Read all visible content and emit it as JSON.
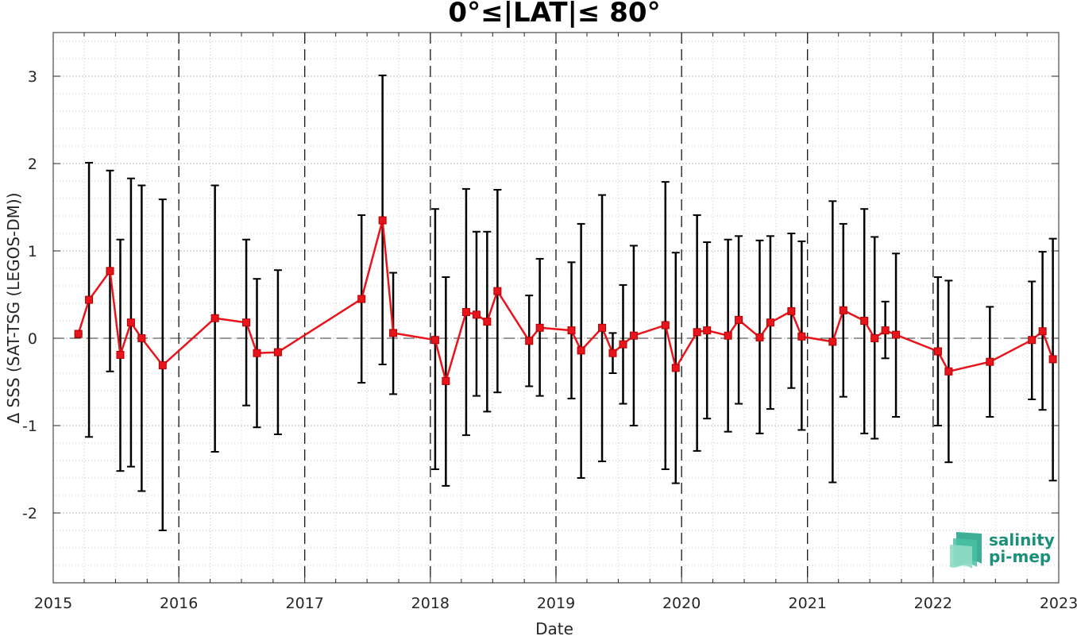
{
  "chart_data": {
    "type": "line",
    "title": "0°≤|LAT|≤ 80°",
    "xlabel": "Date",
    "ylabel": "Δ SSS (SAT-TSG (LEGOS-DM))",
    "xlim": [
      "2015-01-01",
      "2023-01-01"
    ],
    "ylim": [
      -2.8,
      3.5
    ],
    "y_ticks": [
      -2,
      -1,
      0,
      1,
      2,
      3
    ],
    "x_ticks": [
      "2015-01-01",
      "2016-01-01",
      "2017-01-01",
      "2018-01-01",
      "2019-01-01",
      "2020-01-01",
      "2021-01-01",
      "2022-01-01",
      "2023-01-01"
    ],
    "x_tick_labels": [
      "2015",
      "2016",
      "2017",
      "2018",
      "2019",
      "2020",
      "2021",
      "2022",
      "2023"
    ],
    "grid": true,
    "year_separators": "dashed vertical lines at each year",
    "zero_line": "dashed horizontal line at 0",
    "line_color": "#e8141b",
    "marker": "square",
    "error_bar_color": "#000000",
    "series": [
      {
        "x": [
          "2015-03-15",
          "2015-04-15",
          "2015-06-15",
          "2015-07-15",
          "2015-08-15",
          "2015-09-15",
          "2015-11-15",
          "2016-04-15",
          "2016-07-15",
          "2016-08-15",
          "2016-10-15",
          "2017-06-15",
          "2017-08-15",
          "2017-09-15",
          "2018-01-15",
          "2018-02-15",
          "2018-04-15",
          "2018-05-15",
          "2018-06-15",
          "2018-07-15",
          "2018-10-15",
          "2018-11-15",
          "2019-02-15",
          "2019-03-15",
          "2019-05-15",
          "2019-06-15",
          "2019-07-15",
          "2019-08-15",
          "2019-11-15",
          "2019-12-15",
          "2020-02-15",
          "2020-03-15",
          "2020-05-15",
          "2020-06-15",
          "2020-08-15",
          "2020-09-15",
          "2020-11-15",
          "2020-12-15",
          "2021-03-15",
          "2021-04-15",
          "2021-06-15",
          "2021-07-15",
          "2021-08-15",
          "2021-09-15",
          "2022-01-15",
          "2022-02-15",
          "2022-06-15",
          "2022-10-15",
          "2022-11-15",
          "2022-12-15"
        ],
        "y": [
          0.05,
          0.44,
          0.77,
          -0.19,
          0.18,
          0.0,
          -0.31,
          0.23,
          0.18,
          -0.17,
          -0.16,
          0.45,
          1.35,
          0.06,
          -0.02,
          -0.49,
          0.3,
          0.27,
          0.19,
          0.54,
          -0.03,
          0.12,
          0.09,
          -0.14,
          0.12,
          -0.17,
          -0.07,
          0.03,
          0.15,
          -0.34,
          0.07,
          0.09,
          0.03,
          0.21,
          0.01,
          0.18,
          0.31,
          0.02,
          -0.04,
          0.32,
          0.2,
          0.0,
          0.09,
          0.04,
          -0.15,
          -0.38,
          -0.27,
          -0.02,
          0.08,
          -0.24
        ],
        "y_low": [
          0.05,
          -1.13,
          -0.38,
          -1.52,
          -1.47,
          -1.75,
          -2.2,
          -1.3,
          -0.77,
          -1.02,
          -1.1,
          -0.51,
          -0.3,
          -0.64,
          -1.5,
          -1.69,
          -1.11,
          -0.66,
          -0.84,
          -0.62,
          -0.55,
          -0.66,
          -0.69,
          -1.6,
          -1.41,
          -0.4,
          -0.75,
          -1.0,
          -1.5,
          -1.66,
          -1.29,
          -0.92,
          -1.07,
          -0.75,
          -1.09,
          -0.81,
          -0.57,
          -1.05,
          -1.65,
          -0.67,
          -1.09,
          -1.15,
          -0.23,
          -0.9,
          -1.0,
          -1.42,
          -0.9,
          -0.7,
          -0.82,
          -1.63
        ],
        "y_high": [
          0.05,
          2.01,
          1.92,
          1.13,
          1.83,
          1.75,
          1.59,
          1.75,
          1.13,
          0.68,
          0.78,
          1.41,
          3.01,
          0.75,
          1.48,
          0.7,
          1.71,
          1.22,
          1.22,
          1.7,
          0.49,
          0.91,
          0.87,
          1.31,
          1.64,
          0.06,
          0.61,
          1.06,
          1.79,
          0.98,
          1.41,
          1.1,
          1.13,
          1.17,
          1.12,
          1.17,
          1.2,
          1.11,
          1.57,
          1.31,
          1.48,
          1.16,
          0.42,
          0.97,
          0.7,
          0.66,
          0.36,
          0.65,
          0.99,
          1.14
        ]
      }
    ]
  },
  "logo": {
    "line1": "salinity",
    "line2": "pi-mep",
    "color": "#1a8f7a"
  }
}
